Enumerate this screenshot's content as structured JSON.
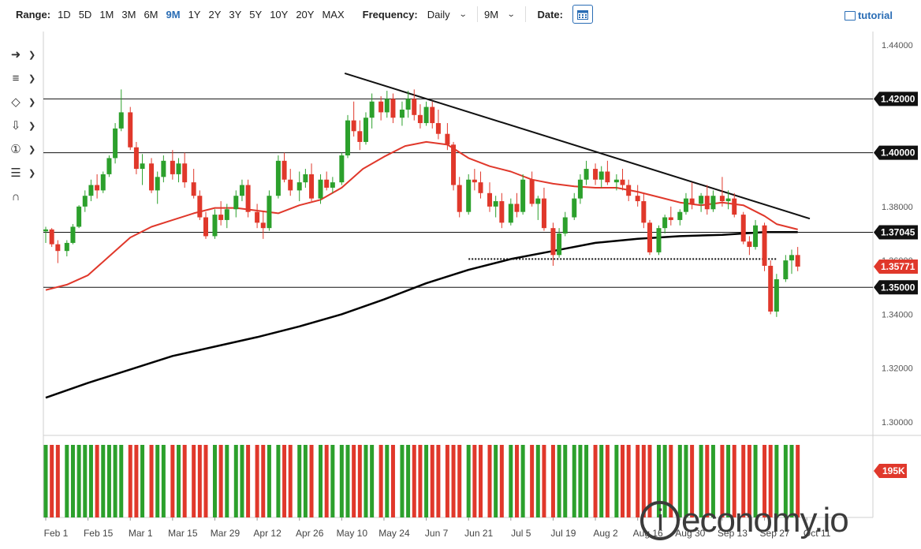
{
  "toolbar": {
    "range_label": "Range:",
    "ranges": [
      "1D",
      "5D",
      "1M",
      "3M",
      "6M",
      "9M",
      "1Y",
      "2Y",
      "3Y",
      "5Y",
      "10Y",
      "20Y",
      "MAX"
    ],
    "active_range": "9M",
    "frequency_label": "Frequency:",
    "frequency_value": "Daily",
    "period_value": "9M",
    "date_label": "Date:",
    "tutorial_label": "tutorial"
  },
  "logo_text": "economy.io",
  "logo_letter": "i",
  "chart_data": {
    "type": "candlestick",
    "x_tick_labels": [
      "Feb 1",
      "Feb 15",
      "Mar 1",
      "Mar 15",
      "Mar 29",
      "Apr 12",
      "Apr 26",
      "May 10",
      "May 24",
      "Jun 7",
      "Jun 21",
      "Jul 5",
      "Jul 19",
      "Aug 2",
      "Aug 16",
      "Aug 30",
      "Sep 13",
      "Sep 27",
      "Oct 11"
    ],
    "y_ticks": [
      1.3,
      1.32,
      1.34,
      1.36,
      1.38,
      1.4,
      1.42,
      1.44
    ],
    "y_tick_labels": [
      "1.30000",
      "1.32000",
      "1.34000",
      "1.36000",
      "1.38000",
      "1.40000",
      "1.42000",
      "1.44000"
    ],
    "ylim": [
      1.295,
      1.445
    ],
    "colors": {
      "up": "#2ca02c",
      "down": "#e0382b",
      "ma50": "#e0382b",
      "ma200": "#000000",
      "badge_dark": "#111111",
      "badge_red": "#e0382b"
    },
    "horizontal_levels": [
      {
        "value": 1.42,
        "label": "1.42000"
      },
      {
        "value": 1.4,
        "label": "1.40000"
      },
      {
        "value": 1.37045,
        "label": "1.37045"
      },
      {
        "value": 1.35,
        "label": "1.35000"
      }
    ],
    "last_price": {
      "value": 1.35771,
      "label": "1.35771"
    },
    "support_dotted": {
      "start": "Jun 21",
      "end": "Oct 1",
      "value": 1.3605
    },
    "trendline": {
      "start": {
        "date": "May 11",
        "value": 1.4295
      },
      "end": {
        "date": "Oct 12",
        "value": 1.3755
      }
    },
    "ma200": [
      [
        "Feb 1",
        1.309
      ],
      [
        "Feb 15",
        1.3145
      ],
      [
        "Mar 1",
        1.3195
      ],
      [
        "Mar 15",
        1.3245
      ],
      [
        "Mar 29",
        1.328
      ],
      [
        "Apr 12",
        1.3315
      ],
      [
        "Apr 26",
        1.3355
      ],
      [
        "May 10",
        1.34
      ],
      [
        "May 24",
        1.3455
      ],
      [
        "Jun 7",
        1.3515
      ],
      [
        "Jun 21",
        1.3565
      ],
      [
        "Jul 5",
        1.3605
      ],
      [
        "Jul 19",
        1.3635
      ],
      [
        "Aug 2",
        1.3665
      ],
      [
        "Aug 16",
        1.368
      ],
      [
        "Aug 30",
        1.369
      ],
      [
        "Sep 13",
        1.3695
      ],
      [
        "Sep 27",
        1.3705
      ],
      [
        "Oct 8",
        1.3705
      ]
    ],
    "ma50": [
      [
        "Feb 1",
        1.349
      ],
      [
        "Feb 8",
        1.351
      ],
      [
        "Feb 15",
        1.3545
      ],
      [
        "Feb 22",
        1.3615
      ],
      [
        "Mar 1",
        1.3685
      ],
      [
        "Mar 8",
        1.3725
      ],
      [
        "Mar 15",
        1.375
      ],
      [
        "Mar 22",
        1.3775
      ],
      [
        "Mar 29",
        1.3795
      ],
      [
        "Apr 5",
        1.3795
      ],
      [
        "Apr 12",
        1.3785
      ],
      [
        "Apr 19",
        1.3775
      ],
      [
        "Apr 26",
        1.3805
      ],
      [
        "May 3",
        1.3825
      ],
      [
        "May 10",
        1.387
      ],
      [
        "May 17",
        1.394
      ],
      [
        "May 24",
        1.3985
      ],
      [
        "May 31",
        1.4025
      ],
      [
        "Jun 7",
        1.404
      ],
      [
        "Jun 14",
        1.403
      ],
      [
        "Jun 21",
        1.398
      ],
      [
        "Jun 28",
        1.395
      ],
      [
        "Jul 5",
        1.393
      ],
      [
        "Jul 12",
        1.39
      ],
      [
        "Jul 19",
        1.3885
      ],
      [
        "Jul 26",
        1.3875
      ],
      [
        "Aug 2",
        1.387
      ],
      [
        "Aug 9",
        1.387
      ],
      [
        "Aug 16",
        1.3855
      ],
      [
        "Aug 23",
        1.3835
      ],
      [
        "Aug 30",
        1.3815
      ],
      [
        "Sep 6",
        1.3805
      ],
      [
        "Sep 13",
        1.3815
      ],
      [
        "Sep 20",
        1.3805
      ],
      [
        "Sep 27",
        1.3765
      ],
      [
        "Oct 1",
        1.3735
      ],
      [
        "Oct 8",
        1.3715
      ]
    ],
    "candles": [
      [
        "Feb 1",
        1.3708,
        1.3725,
        1.3665,
        1.3715
      ],
      [
        "Feb 3",
        1.3715,
        1.372,
        1.365,
        1.366
      ],
      [
        "Feb 5",
        1.366,
        1.3675,
        1.359,
        1.3635
      ],
      [
        "Feb 8",
        1.3635,
        1.3675,
        1.3615,
        1.3665
      ],
      [
        "Feb 10",
        1.3665,
        1.3735,
        1.366,
        1.3725
      ],
      [
        "Feb 12",
        1.3725,
        1.3805,
        1.372,
        1.38
      ],
      [
        "Feb 14",
        1.38,
        1.386,
        1.378,
        1.384
      ],
      [
        "Feb 16",
        1.384,
        1.39,
        1.382,
        1.388
      ],
      [
        "Feb 18",
        1.388,
        1.392,
        1.383,
        1.386
      ],
      [
        "Feb 20",
        1.386,
        1.393,
        1.385,
        1.392
      ],
      [
        "Feb 22",
        1.392,
        1.399,
        1.391,
        1.398
      ],
      [
        "Feb 24",
        1.398,
        1.411,
        1.396,
        1.409
      ],
      [
        "Feb 26",
        1.409,
        1.4235,
        1.408,
        1.415
      ],
      [
        "Mar 1",
        1.415,
        1.417,
        1.401,
        1.402
      ],
      [
        "Mar 3",
        1.402,
        1.404,
        1.392,
        1.394
      ],
      [
        "Mar 5",
        1.394,
        1.3995,
        1.388,
        1.396
      ],
      [
        "Mar 8",
        1.396,
        1.398,
        1.385,
        1.386
      ],
      [
        "Mar 10",
        1.386,
        1.393,
        1.381,
        1.391
      ],
      [
        "Mar 12",
        1.391,
        1.399,
        1.389,
        1.397
      ],
      [
        "Mar 15",
        1.397,
        1.401,
        1.39,
        1.392
      ],
      [
        "Mar 17",
        1.392,
        1.398,
        1.389,
        1.396
      ],
      [
        "Mar 19",
        1.396,
        1.4,
        1.387,
        1.389
      ],
      [
        "Mar 22",
        1.389,
        1.394,
        1.383,
        1.384
      ],
      [
        "Mar 24",
        1.384,
        1.386,
        1.375,
        1.376
      ],
      [
        "Mar 26",
        1.376,
        1.378,
        1.368,
        1.369
      ],
      [
        "Mar 29",
        1.369,
        1.379,
        1.368,
        1.377
      ],
      [
        "Mar 31",
        1.377,
        1.382,
        1.373,
        1.375
      ],
      [
        "Apr 2",
        1.375,
        1.381,
        1.372,
        1.379
      ],
      [
        "Apr 5",
        1.379,
        1.386,
        1.376,
        1.384
      ],
      [
        "Apr 7",
        1.384,
        1.39,
        1.382,
        1.388
      ],
      [
        "Apr 9",
        1.388,
        1.39,
        1.376,
        1.378
      ],
      [
        "Apr 12",
        1.378,
        1.381,
        1.372,
        1.374
      ],
      [
        "Apr 14",
        1.374,
        1.378,
        1.368,
        1.372
      ],
      [
        "Apr 16",
        1.372,
        1.386,
        1.371,
        1.384
      ],
      [
        "Apr 19",
        1.384,
        1.399,
        1.383,
        1.397
      ],
      [
        "Apr 21",
        1.397,
        1.4,
        1.389,
        1.39
      ],
      [
        "Apr 23",
        1.39,
        1.394,
        1.384,
        1.386
      ],
      [
        "Apr 26",
        1.386,
        1.393,
        1.382,
        1.389
      ],
      [
        "Apr 28",
        1.389,
        1.394,
        1.387,
        1.392
      ],
      [
        "Apr 30",
        1.392,
        1.396,
        1.382,
        1.383
      ],
      [
        "May 3",
        1.383,
        1.392,
        1.381,
        1.39
      ],
      [
        "May 5",
        1.39,
        1.393,
        1.386,
        1.387
      ],
      [
        "May 7",
        1.387,
        1.391,
        1.385,
        1.389
      ],
      [
        "May 10",
        1.389,
        1.4,
        1.388,
        1.399
      ],
      [
        "May 12",
        1.399,
        1.414,
        1.398,
        1.412
      ],
      [
        "May 14",
        1.412,
        1.419,
        1.406,
        1.408
      ],
      [
        "May 16",
        1.408,
        1.412,
        1.401,
        1.404
      ],
      [
        "May 18",
        1.404,
        1.415,
        1.403,
        1.413
      ],
      [
        "May 20",
        1.413,
        1.422,
        1.409,
        1.419
      ],
      [
        "May 23",
        1.419,
        1.421,
        1.412,
        1.415
      ],
      [
        "May 25",
        1.415,
        1.423,
        1.413,
        1.42
      ],
      [
        "May 27",
        1.42,
        1.422,
        1.411,
        1.413
      ],
      [
        "May 30",
        1.413,
        1.419,
        1.41,
        1.416
      ],
      [
        "Jun 1",
        1.416,
        1.423,
        1.413,
        1.42
      ],
      [
        "Jun 3",
        1.42,
        1.4235,
        1.412,
        1.414
      ],
      [
        "Jun 5",
        1.414,
        1.418,
        1.409,
        1.411
      ],
      [
        "Jun 7",
        1.411,
        1.419,
        1.41,
        1.417
      ],
      [
        "Jun 9",
        1.417,
        1.419,
        1.409,
        1.411
      ],
      [
        "Jun 11",
        1.411,
        1.416,
        1.405,
        1.407
      ],
      [
        "Jun 14",
        1.407,
        1.411,
        1.401,
        1.403
      ],
      [
        "Jun 16",
        1.403,
        1.404,
        1.386,
        1.388
      ],
      [
        "Jun 18",
        1.388,
        1.391,
        1.376,
        1.378
      ],
      [
        "Jun 21",
        1.378,
        1.392,
        1.377,
        1.39
      ],
      [
        "Jun 23",
        1.39,
        1.394,
        1.386,
        1.389
      ],
      [
        "Jun 25",
        1.389,
        1.393,
        1.383,
        1.385
      ],
      [
        "Jun 28",
        1.385,
        1.389,
        1.378,
        1.38
      ],
      [
        "Jun 30",
        1.38,
        1.384,
        1.376,
        1.382
      ],
      [
        "Jul 2",
        1.382,
        1.385,
        1.372,
        1.374
      ],
      [
        "Jul 5",
        1.374,
        1.383,
        1.373,
        1.381
      ],
      [
        "Jul 7",
        1.381,
        1.385,
        1.376,
        1.378
      ],
      [
        "Jul 9",
        1.378,
        1.392,
        1.377,
        1.39
      ],
      [
        "Jul 12",
        1.39,
        1.393,
        1.38,
        1.381
      ],
      [
        "Jul 14",
        1.381,
        1.384,
        1.375,
        1.383
      ],
      [
        "Jul 16",
        1.383,
        1.387,
        1.371,
        1.372
      ],
      [
        "Jul 19",
        1.372,
        1.374,
        1.358,
        1.362
      ],
      [
        "Jul 21",
        1.362,
        1.372,
        1.361,
        1.37
      ],
      [
        "Jul 23",
        1.37,
        1.378,
        1.369,
        1.376
      ],
      [
        "Jul 26",
        1.376,
        1.385,
        1.375,
        1.383
      ],
      [
        "Jul 28",
        1.383,
        1.392,
        1.381,
        1.39
      ],
      [
        "Jul 30",
        1.39,
        1.397,
        1.388,
        1.394
      ],
      [
        "Aug 2",
        1.394,
        1.396,
        1.388,
        1.39
      ],
      [
        "Aug 4",
        1.39,
        1.395,
        1.387,
        1.393
      ],
      [
        "Aug 6",
        1.393,
        1.397,
        1.388,
        1.389
      ],
      [
        "Aug 9",
        1.389,
        1.392,
        1.386,
        1.39
      ],
      [
        "Aug 11",
        1.39,
        1.394,
        1.386,
        1.388
      ],
      [
        "Aug 13",
        1.388,
        1.39,
        1.382,
        1.384
      ],
      [
        "Aug 16",
        1.384,
        1.388,
        1.38,
        1.382
      ],
      [
        "Aug 18",
        1.382,
        1.385,
        1.372,
        1.374
      ],
      [
        "Aug 20",
        1.374,
        1.375,
        1.362,
        1.363
      ],
      [
        "Aug 23",
        1.363,
        1.373,
        1.362,
        1.372
      ],
      [
        "Aug 25",
        1.372,
        1.377,
        1.37,
        1.376
      ],
      [
        "Aug 27",
        1.376,
        1.38,
        1.373,
        1.375
      ],
      [
        "Aug 30",
        1.375,
        1.379,
        1.373,
        1.378
      ],
      [
        "Sep 1",
        1.378,
        1.385,
        1.377,
        1.383
      ],
      [
        "Sep 3",
        1.383,
        1.389,
        1.379,
        1.381
      ],
      [
        "Sep 6",
        1.381,
        1.385,
        1.378,
        1.384
      ],
      [
        "Sep 8",
        1.384,
        1.388,
        1.377,
        1.379
      ],
      [
        "Sep 10",
        1.379,
        1.386,
        1.378,
        1.384
      ],
      [
        "Sep 13",
        1.384,
        1.391,
        1.38,
        1.382
      ],
      [
        "Sep 15",
        1.382,
        1.386,
        1.379,
        1.383
      ],
      [
        "Sep 17",
        1.383,
        1.385,
        1.376,
        1.377
      ],
      [
        "Sep 20",
        1.377,
        1.378,
        1.366,
        1.367
      ],
      [
        "Sep 22",
        1.367,
        1.369,
        1.362,
        1.365
      ],
      [
        "Sep 24",
        1.365,
        1.375,
        1.364,
        1.373
      ],
      [
        "Sep 27",
        1.373,
        1.374,
        1.356,
        1.358
      ],
      [
        "Sep 29",
        1.358,
        1.36,
        1.34,
        1.341
      ],
      [
        "Oct 1",
        1.341,
        1.355,
        1.339,
        1.353
      ],
      [
        "Oct 4",
        1.353,
        1.362,
        1.352,
        1.36
      ],
      [
        "Oct 6",
        1.36,
        1.364,
        1.355,
        1.362
      ],
      [
        "Oct 8",
        1.362,
        1.365,
        1.356,
        1.3577
      ]
    ],
    "volume_ylim": [
      0,
      240
    ],
    "volume_badge": "195K"
  }
}
